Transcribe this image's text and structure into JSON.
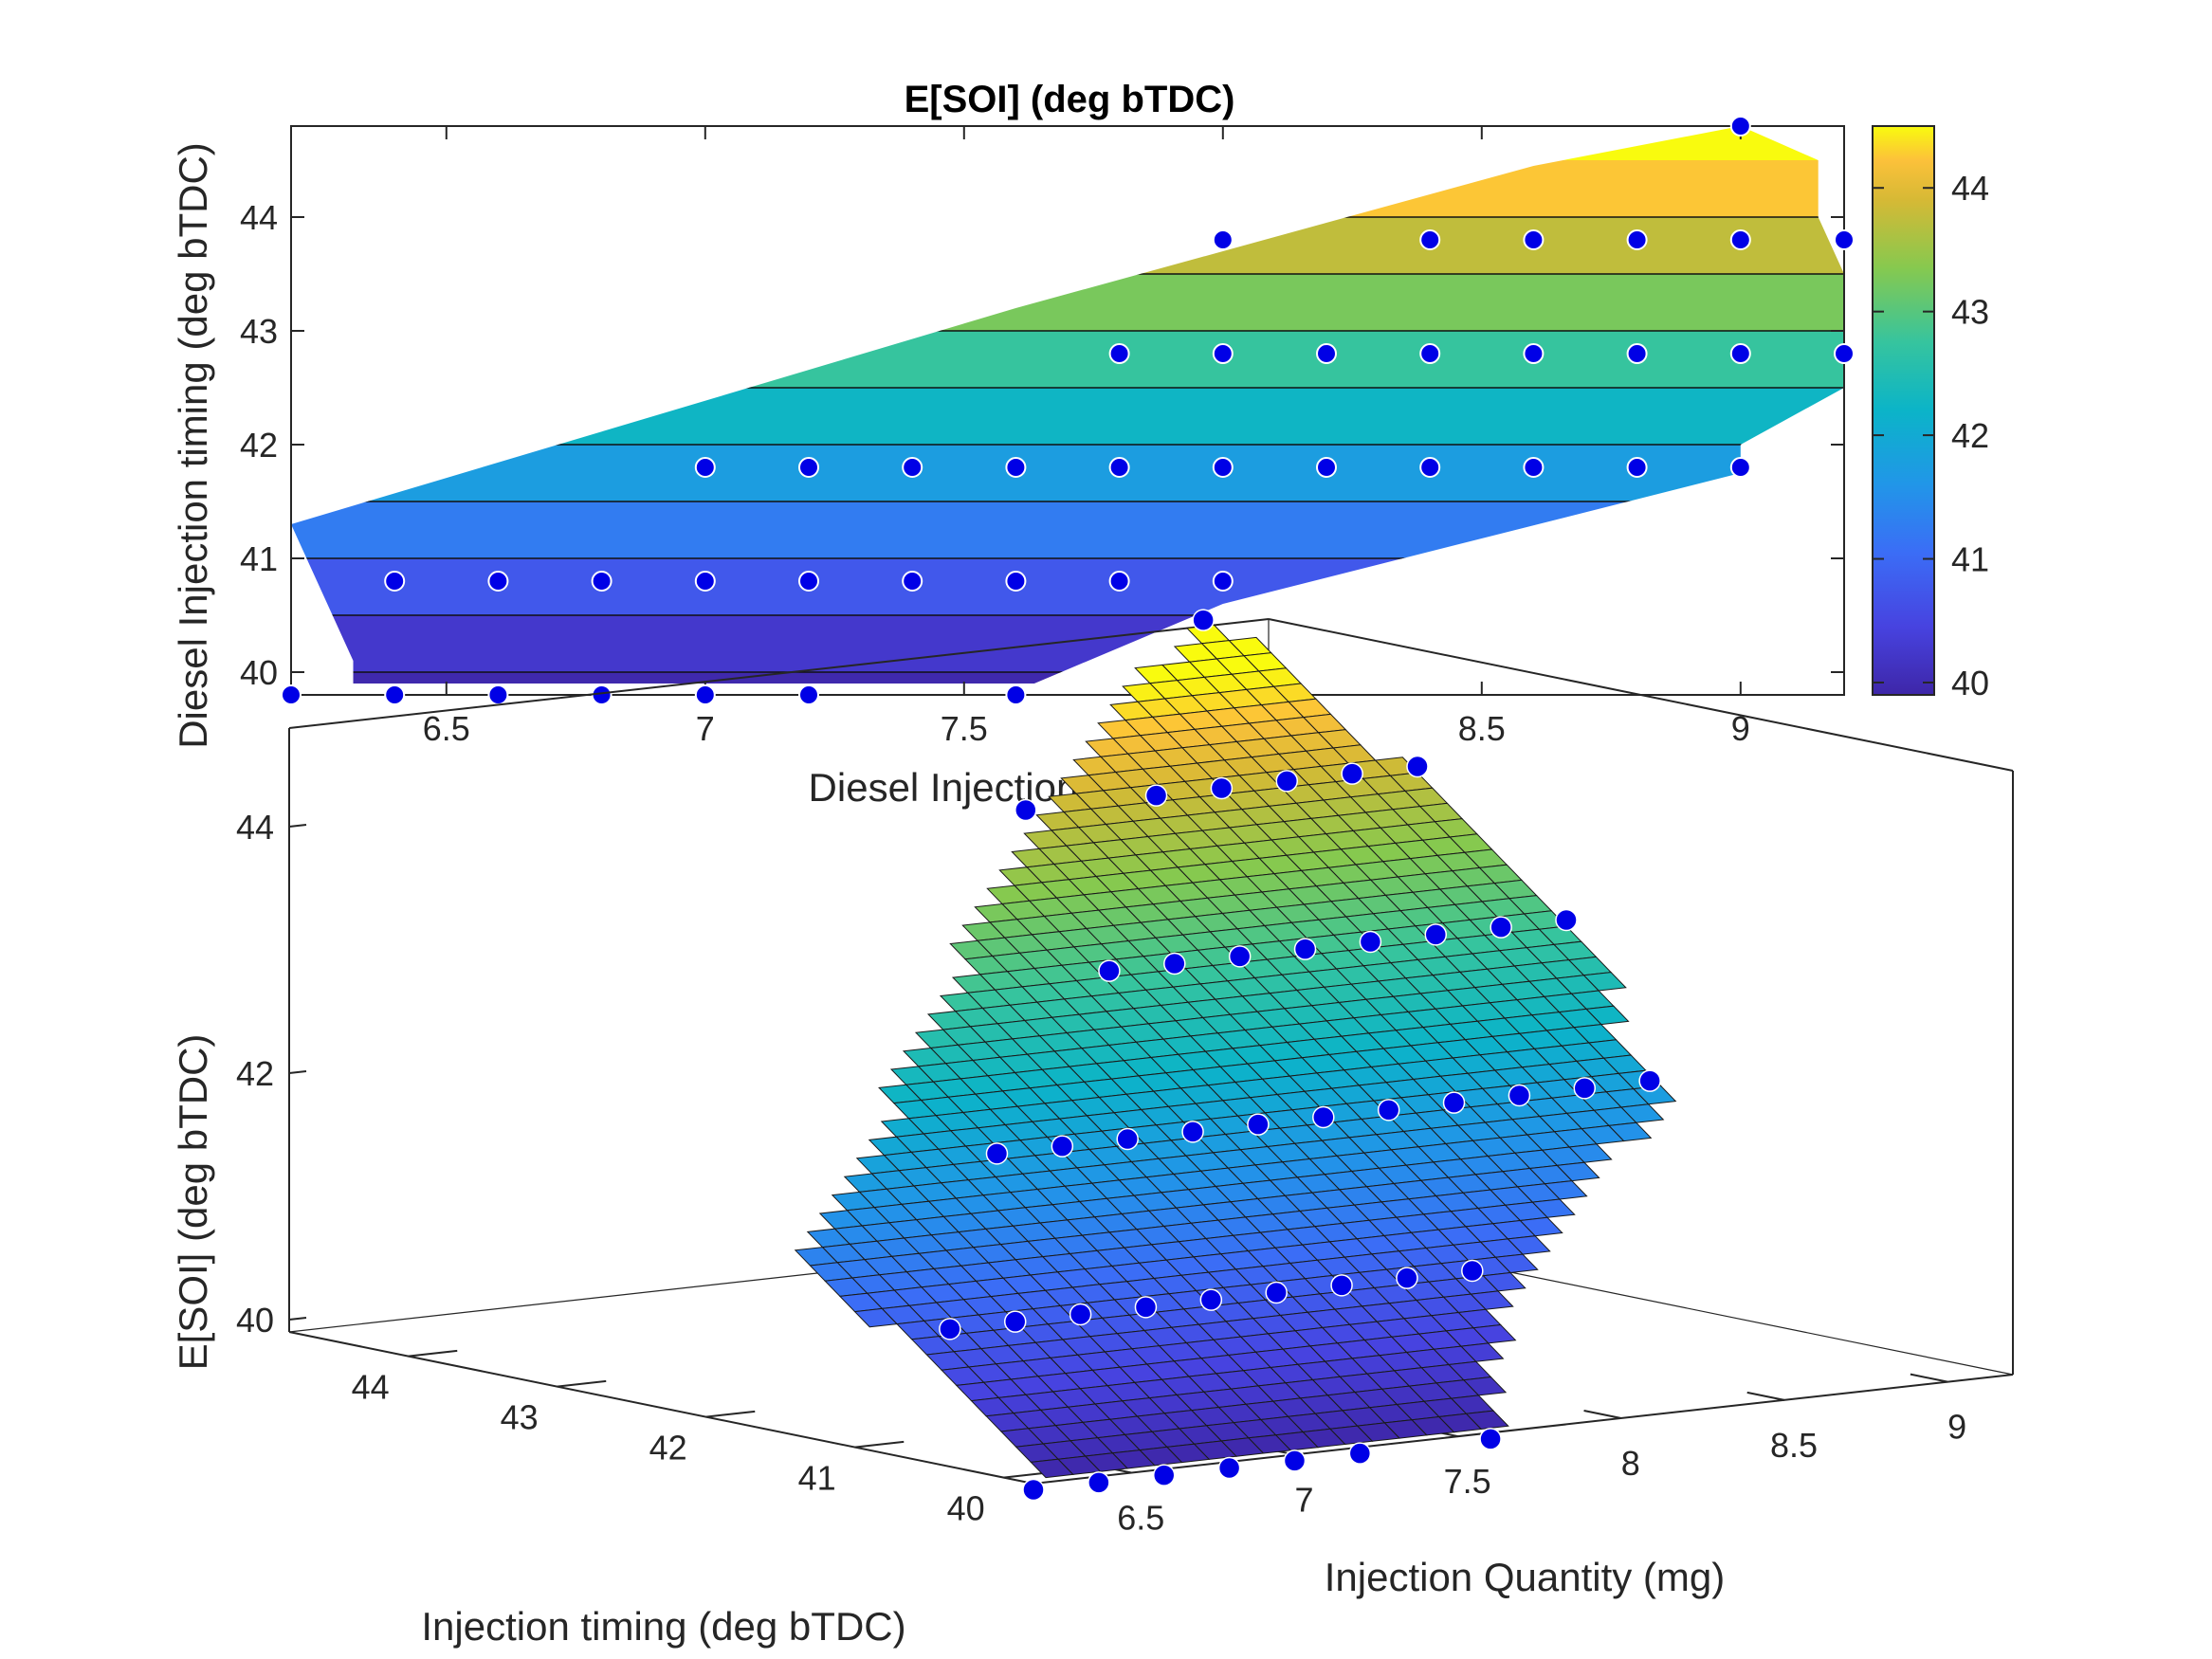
{
  "chart_data": [
    {
      "type": "contour",
      "title": "E[SOI] (deg bTDC)",
      "xlabel": "Diesel Injection Quantity (mg)",
      "ylabel": "Diesel Injection timing (deg bTDC)",
      "xlim": [
        6.2,
        9.2
      ],
      "ylim": [
        39.8,
        44.8
      ],
      "xticks": [
        "6.5",
        "7",
        "7.5",
        "8",
        "8.5",
        "9"
      ],
      "yticks": [
        "40",
        "41",
        "42",
        "43",
        "44"
      ],
      "colorbar": {
        "min": 39.9,
        "max": 44.5,
        "ticks": [
          "40",
          "41",
          "42",
          "43",
          "44"
        ]
      },
      "band_edges": [
        39.9,
        40.0,
        40.5,
        41.0,
        41.5,
        42.0,
        42.5,
        43.0,
        43.5,
        44.0,
        44.5,
        44.8
      ],
      "points": [
        [
          6.2,
          39.8
        ],
        [
          6.4,
          39.8
        ],
        [
          6.6,
          39.8
        ],
        [
          6.8,
          39.8
        ],
        [
          7.0,
          39.8
        ],
        [
          7.2,
          39.8
        ],
        [
          7.6,
          39.8
        ],
        [
          6.4,
          40.8
        ],
        [
          6.6,
          40.8
        ],
        [
          6.8,
          40.8
        ],
        [
          7.0,
          40.8
        ],
        [
          7.2,
          40.8
        ],
        [
          7.4,
          40.8
        ],
        [
          7.6,
          40.8
        ],
        [
          7.8,
          40.8
        ],
        [
          8.0,
          40.8
        ],
        [
          7.0,
          41.8
        ],
        [
          7.2,
          41.8
        ],
        [
          7.4,
          41.8
        ],
        [
          7.6,
          41.8
        ],
        [
          7.8,
          41.8
        ],
        [
          8.0,
          41.8
        ],
        [
          8.2,
          41.8
        ],
        [
          8.4,
          41.8
        ],
        [
          8.6,
          41.8
        ],
        [
          8.8,
          41.8
        ],
        [
          9.0,
          41.8
        ],
        [
          7.8,
          42.8
        ],
        [
          8.0,
          42.8
        ],
        [
          8.2,
          42.8
        ],
        [
          8.4,
          42.8
        ],
        [
          8.6,
          42.8
        ],
        [
          8.8,
          42.8
        ],
        [
          9.0,
          42.8
        ],
        [
          9.2,
          42.8
        ],
        [
          8.0,
          43.8
        ],
        [
          8.4,
          43.8
        ],
        [
          8.6,
          43.8
        ],
        [
          8.8,
          43.8
        ],
        [
          9.0,
          43.8
        ],
        [
          9.2,
          43.8
        ],
        [
          9.0,
          44.8
        ]
      ]
    },
    {
      "type": "surface3d",
      "zlabel": "E[SOI] (deg bTDC)",
      "xlabel": "Injection Quantity (mg)",
      "ylabel": "Injection timing (deg bTDC)",
      "xticks": [
        "6.5",
        "7",
        "7.5",
        "8",
        "8.5",
        "9"
      ],
      "yticks": [
        "40",
        "41",
        "42",
        "43",
        "44"
      ],
      "zticks": [
        "40",
        "42",
        "44"
      ]
    }
  ]
}
